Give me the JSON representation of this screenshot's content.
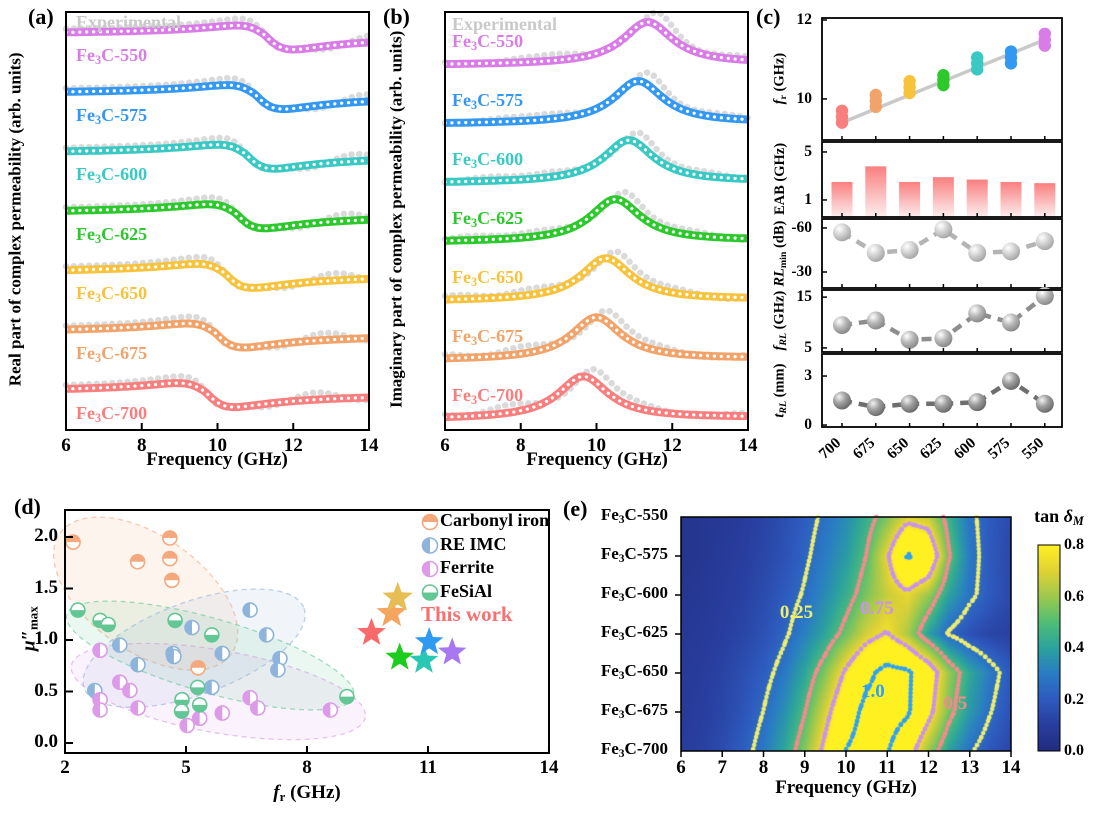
{
  "text": {
    "tag_a": "(a)",
    "tag_b": "(b)",
    "tag_c": "(c)",
    "tag_d": "(d)",
    "tag_e": "(e)",
    "experimental": "Experimental",
    "ylabel_a": "Real part of complex permeability (arb. units)",
    "ylabel_b": "Imaginary part of complex permeability (arb. units)",
    "xlabel_freq": "Frequency (GHz)",
    "this_work": "This work"
  },
  "colors": {
    "experimental_gray": "#dadada",
    "trend_gray": "#c9c9c9",
    "eab_bar_top": "#f97f7f",
    "eab_bar_bottom": "#fdeeee",
    "this_work": "#f97070"
  },
  "chart_data": [
    {
      "id": "a",
      "type": "line",
      "xlabel": "Frequency (GHz)",
      "ylabel": "Real part of complex permeability (arb. units)",
      "x_range": [
        6,
        14
      ],
      "xticks": [
        6,
        8,
        10,
        12,
        14
      ],
      "annotation": "Experimental",
      "series": [
        {
          "name": "Fe3C-550",
          "color": "#d97ce8",
          "resonance_ghz": 11.25
        },
        {
          "name": "Fe3C-575",
          "color": "#3398f2",
          "resonance_ghz": 11.0
        },
        {
          "name": "Fe3C-600",
          "color": "#38c9c4",
          "resonance_ghz": 10.75
        },
        {
          "name": "Fe3C-625",
          "color": "#2cc92c",
          "resonance_ghz": 10.5
        },
        {
          "name": "Fe3C-650",
          "color": "#f8c33c",
          "resonance_ghz": 10.2
        },
        {
          "name": "Fe3C-675",
          "color": "#f2a369",
          "resonance_ghz": 9.95
        },
        {
          "name": "Fe3C-700",
          "color": "#f97e7e",
          "resonance_ghz": 9.7
        }
      ]
    },
    {
      "id": "b",
      "type": "line",
      "xlabel": "Frequency (GHz)",
      "ylabel": "Imaginary part of complex permeability (arb. units)",
      "x_range": [
        6,
        14
      ],
      "xticks": [
        6,
        8,
        10,
        12,
        14
      ],
      "annotation": "Experimental",
      "series": [
        {
          "name": "Fe3C-550",
          "color": "#d97ce8",
          "peak_ghz": 11.35
        },
        {
          "name": "Fe3C-575",
          "color": "#3398f2",
          "peak_ghz": 11.1
        },
        {
          "name": "Fe3C-600",
          "color": "#38c9c4",
          "peak_ghz": 10.85
        },
        {
          "name": "Fe3C-625",
          "color": "#2cc92c",
          "peak_ghz": 10.5
        },
        {
          "name": "Fe3C-650",
          "color": "#f8c33c",
          "peak_ghz": 10.25
        },
        {
          "name": "Fe3C-675",
          "color": "#f2a369",
          "peak_ghz": 10.0
        },
        {
          "name": "Fe3C-700",
          "color": "#f97e7e",
          "peak_ghz": 9.65
        }
      ]
    },
    {
      "id": "c",
      "type": "multi-panel",
      "categories": [
        "700",
        "675",
        "650",
        "625",
        "600",
        "575",
        "550"
      ],
      "category_colors": [
        "#f97e7e",
        "#f2a369",
        "#f8c33c",
        "#2cc92c",
        "#38c9c4",
        "#3398f2",
        "#d97ce8"
      ],
      "subplots": [
        {
          "key": "fr",
          "kind": "scatter-cluster",
          "ylabel_parts": [
            [
              "i",
              "f"
            ],
            [
              "sub",
              "r"
            ],
            [
              "t",
              " (GHz)"
            ]
          ],
          "yticks": [
            12,
            10
          ],
          "yrange": [
            8.96,
            12.05
          ],
          "points_per_category": [
            [
              9.4,
              9.55,
              9.7
            ],
            [
              9.8,
              9.95,
              10.1
            ],
            [
              10.15,
              10.3,
              10.45
            ],
            [
              10.35,
              10.48,
              10.6
            ],
            [
              10.75,
              10.9,
              11.05
            ],
            [
              10.9,
              11.05,
              11.2
            ],
            [
              11.35,
              11.5,
              11.65
            ]
          ],
          "trend_line": [
            9.4,
            11.5
          ]
        },
        {
          "key": "eab",
          "kind": "bar",
          "ylabel_parts": [
            [
              "t",
              "EAB (GHz)"
            ]
          ],
          "yticks": [
            5,
            1
          ],
          "yrange": [
            -0.42,
            5.83
          ],
          "values": [
            2.5,
            3.8,
            2.5,
            2.9,
            2.7,
            2.5,
            2.4
          ]
        },
        {
          "key": "rlmin",
          "kind": "sphere-line",
          "shade": "light",
          "ylabel_parts": [
            [
              "i",
              "RL"
            ],
            [
              "sub",
              "min"
            ],
            [
              "t",
              " (dB)"
            ]
          ],
          "yticks": [
            -60,
            -30
          ],
          "yrange": [
            -19.1,
            -66.1
          ],
          "values": [
            -57,
            -43,
            -45,
            -59,
            -43,
            -44,
            -51
          ]
        },
        {
          "key": "frl",
          "kind": "sphere-line",
          "shade": "mid",
          "ylabel_parts": [
            [
              "i",
              "f"
            ],
            [
              "isub",
              "RL"
            ],
            [
              "t",
              " (GHz)"
            ]
          ],
          "yticks": [
            15,
            5
          ],
          "yrange": [
            4.2,
            16.4
          ],
          "values": [
            9.5,
            10.4,
            6.6,
            6.9,
            11.8,
            10.0,
            15.2
          ]
        },
        {
          "key": "trl",
          "kind": "sphere-line",
          "shade": "dark",
          "ylabel_parts": [
            [
              "i",
              "t"
            ],
            [
              "isub",
              "RL"
            ],
            [
              "t",
              " (mm)"
            ]
          ],
          "yticks": [
            3,
            0
          ],
          "yrange": [
            -0.12,
            4.35
          ],
          "values": [
            1.5,
            1.1,
            1.3,
            1.3,
            1.4,
            2.7,
            1.3
          ]
        }
      ]
    },
    {
      "id": "d",
      "type": "scatter",
      "xlabel_parts": [
        [
          "i",
          "f"
        ],
        [
          "sub",
          "r"
        ],
        [
          "t",
          " (GHz)"
        ]
      ],
      "ylabel_parts": [
        [
          "i",
          "μ"
        ],
        [
          "t",
          "″"
        ],
        [
          "sub",
          "max"
        ]
      ],
      "xticks": [
        2,
        5,
        8,
        11,
        14
      ],
      "x_range": [
        2,
        14
      ],
      "yticks": [
        "0.0",
        "0.5",
        "1.0",
        "1.5",
        "2.0"
      ],
      "y_range": [
        0,
        2.2
      ],
      "legend_position": "top-right",
      "groups": [
        {
          "name": "Carbonyl iron",
          "color": "#f4a87c",
          "fill_side": "top",
          "points": [
            [
              2.2,
              1.95
            ],
            [
              3.8,
              1.76
            ],
            [
              4.6,
              1.99
            ],
            [
              4.6,
              1.79
            ],
            [
              4.65,
              1.58
            ],
            [
              5.3,
              0.73
            ]
          ],
          "region": {
            "cx": 4.0,
            "cy": 1.45,
            "rx_ghz": 2.6,
            "ry_mu": 0.56,
            "rot_deg": 35
          }
        },
        {
          "name": "RE IMC",
          "color": "#8fb4dc",
          "fill_side": "left",
          "points": [
            [
              3.36,
              0.95
            ],
            [
              2.74,
              0.51
            ],
            [
              3.81,
              0.76
            ],
            [
              4.68,
              0.87
            ],
            [
              4.7,
              0.84
            ],
            [
              5.15,
              1.12
            ],
            [
              6.59,
              1.29
            ],
            [
              7.0,
              1.05
            ],
            [
              5.9,
              0.87
            ],
            [
              5.64,
              0.54
            ],
            [
              7.33,
              0.82
            ],
            [
              7.28,
              0.71
            ]
          ],
          "region": {
            "cx": 5.2,
            "cy": 0.92,
            "rx_ghz": 2.9,
            "ry_mu": 0.45,
            "rot_deg": -20
          }
        },
        {
          "name": "Ferrite",
          "color": "#dc9ae8",
          "fill_side": "left",
          "points": [
            [
              2.87,
              0.9
            ],
            [
              3.36,
              0.59
            ],
            [
              3.61,
              0.51
            ],
            [
              2.87,
              0.42
            ],
            [
              2.87,
              0.32
            ],
            [
              3.81,
              0.34
            ],
            [
              5.03,
              0.17
            ],
            [
              5.34,
              0.24
            ],
            [
              5.9,
              0.29
            ],
            [
              6.59,
              0.44
            ],
            [
              6.78,
              0.34
            ],
            [
              8.58,
              0.32
            ]
          ],
          "region": {
            "cx": 5.8,
            "cy": 0.5,
            "rx_ghz": 3.7,
            "ry_mu": 0.4,
            "rot_deg": 10
          }
        },
        {
          "name": "FeSiAl",
          "color": "#62c794",
          "fill_side": "bottom",
          "points": [
            [
              2.32,
              1.29
            ],
            [
              2.87,
              1.19
            ],
            [
              3.07,
              1.15
            ],
            [
              4.73,
              1.19
            ],
            [
              5.64,
              1.05
            ],
            [
              5.29,
              0.54
            ],
            [
              4.9,
              0.42
            ],
            [
              4.89,
              0.31
            ],
            [
              5.34,
              0.37
            ],
            [
              8.99,
              0.45
            ]
          ],
          "region": {
            "cx": 5.6,
            "cy": 0.85,
            "rx_ghz": 3.7,
            "ry_mu": 0.36,
            "rot_deg": 16
          }
        }
      ],
      "stars": [
        {
          "sample": "Fe3C-700",
          "color": "#f86a6a",
          "fr": 9.6,
          "mu": 1.07,
          "size": 15
        },
        {
          "sample": "Fe3C-675",
          "color": "#f5a55f",
          "fr": 10.1,
          "mu": 1.26,
          "size": 16
        },
        {
          "sample": "Fe3C-650",
          "color": "#e7bd55",
          "fr": 10.25,
          "mu": 1.41,
          "size": 16
        },
        {
          "sample": "Fe3C-625",
          "color": "#1ecc1e",
          "fr": 10.3,
          "mu": 0.83,
          "size": 15
        },
        {
          "sample": "Fe3C-600",
          "color": "#28c8b4",
          "fr": 10.9,
          "mu": 0.8,
          "size": 15
        },
        {
          "sample": "Fe3C-575",
          "color": "#2f9bf0",
          "fr": 11.03,
          "mu": 0.98,
          "size": 15
        },
        {
          "sample": "Fe3C-550",
          "color": "#a878f2",
          "fr": 11.6,
          "mu": 0.88,
          "size": 15
        }
      ],
      "annotation": {
        "text": "This work",
        "color": "#f97070"
      }
    },
    {
      "id": "e",
      "type": "heatmap",
      "title_parts": [
        [
          "t",
          "tan "
        ],
        [
          "i",
          "δ"
        ],
        [
          "isub",
          "M"
        ]
      ],
      "xlabel": "Frequency (GHz)",
      "x_range": [
        6,
        14
      ],
      "xticks": [
        6,
        7,
        8,
        9,
        10,
        11,
        12,
        13,
        14
      ],
      "rows": [
        "Fe3C-550",
        "Fe3C-575",
        "Fe3C-600",
        "Fe3C-625",
        "Fe3C-650",
        "Fe3C-675",
        "Fe3C-700"
      ],
      "grid_freqs": [
        6,
        6.5,
        7,
        7.5,
        8,
        8.5,
        9,
        9.5,
        10,
        10.5,
        11,
        11.5,
        12,
        12.5,
        13,
        13.5,
        14
      ],
      "grid": [
        [
          0.05,
          0.06,
          0.07,
          0.09,
          0.12,
          0.16,
          0.21,
          0.27,
          0.34,
          0.44,
          0.56,
          0.7,
          0.66,
          0.45,
          0.28,
          0.2,
          0.15
        ],
        [
          0.05,
          0.06,
          0.08,
          0.1,
          0.13,
          0.17,
          0.23,
          0.3,
          0.38,
          0.5,
          0.72,
          1.02,
          0.95,
          0.52,
          0.3,
          0.2,
          0.13
        ],
        [
          0.06,
          0.07,
          0.09,
          0.11,
          0.15,
          0.2,
          0.26,
          0.34,
          0.44,
          0.56,
          0.66,
          0.72,
          0.6,
          0.4,
          0.28,
          0.2,
          0.14
        ],
        [
          0.07,
          0.08,
          0.1,
          0.13,
          0.17,
          0.23,
          0.31,
          0.41,
          0.54,
          0.68,
          0.76,
          0.62,
          0.4,
          0.24,
          0.17,
          0.13,
          0.11
        ],
        [
          0.08,
          0.09,
          0.12,
          0.16,
          0.21,
          0.29,
          0.41,
          0.57,
          0.77,
          0.95,
          1.06,
          1.03,
          0.88,
          0.6,
          0.42,
          0.3,
          0.2
        ],
        [
          0.08,
          0.1,
          0.13,
          0.18,
          0.25,
          0.35,
          0.49,
          0.69,
          0.9,
          1.05,
          1.1,
          1.03,
          0.82,
          0.55,
          0.38,
          0.26,
          0.17
        ],
        [
          0.09,
          0.11,
          0.15,
          0.21,
          0.29,
          0.41,
          0.57,
          0.79,
          1.0,
          1.08,
          1.02,
          0.85,
          0.6,
          0.4,
          0.27,
          0.19,
          0.13
        ]
      ],
      "colorbar": {
        "min": 0.0,
        "max": 0.8,
        "ticks": [
          "0.8",
          "0.6",
          "0.4",
          "0.2",
          "0.0"
        ]
      },
      "colormap_stops": [
        "#222c80",
        "#283e9e",
        "#2e5abe",
        "#2a7cc4",
        "#2ca29e",
        "#50be76",
        "#9ec84e",
        "#e0d234",
        "#fff022"
      ],
      "contours": [
        {
          "label": "0.25",
          "level": 0.25,
          "color": "#eded72",
          "label_f": 8.8,
          "label_row": 2.5
        },
        {
          "label": "0.5",
          "level": 0.5,
          "color": "#f48b8b",
          "label_f": 12.65,
          "label_row": 4.85
        },
        {
          "label": "0.75",
          "level": 0.75,
          "color": "#c993ee",
          "label_f": 10.75,
          "label_row": 2.4
        },
        {
          "label": "1.0",
          "level": 1.0,
          "color": "#2fa1f5",
          "label_f": 10.65,
          "label_row": 4.55
        }
      ]
    }
  ]
}
